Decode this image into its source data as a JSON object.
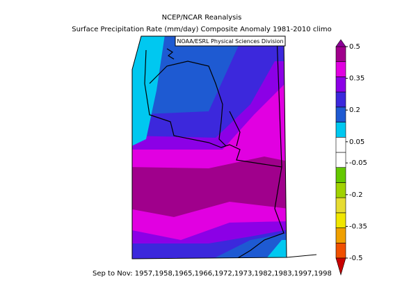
{
  "title": "NCEP/NCAR Reanalysis",
  "subtitle": "Surface Precipitation Rate (mm/day) Composite Anomaly 1981-2010 climo",
  "credit": "NOAA/ESRL Physical Sciences Division",
  "caption": "Sep to Nov: 1957,1958,1965,1966,1972,1973,1982,1983,1997,1998",
  "colorbar": {
    "ticks": [
      0.5,
      0.35,
      0.2,
      0.05,
      -0.05,
      -0.2,
      -0.35,
      -0.5
    ],
    "range": [
      -0.5,
      0.5
    ],
    "top_color": "#8c0096",
    "bottom_color": "#c80000",
    "colors": [
      "#f05000",
      "#f0a000",
      "#f0e600",
      "#e6dc32",
      "#a0d200",
      "#64c800",
      "#ffffff",
      "#ffffff",
      "#00c8f0",
      "#1e5ad2",
      "#3c28dc",
      "#8c00e6",
      "#e100e1",
      "#a0008c"
    ]
  }
}
